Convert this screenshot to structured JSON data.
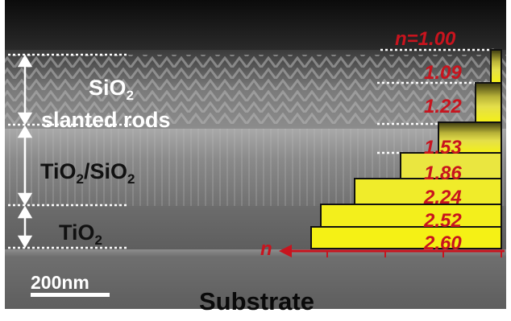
{
  "layers": {
    "sio2_main": "SiO",
    "sio2_sub": "2",
    "sio2_line2": "slanted rods",
    "mixed_ti": "TiO",
    "mixed_sub1": "2",
    "mixed_mid": "/SiO",
    "mixed_sub2": "2",
    "tio2_main": "TiO",
    "tio2_sub": "2"
  },
  "scale_bar": {
    "label": "200nm"
  },
  "substrate": {
    "label": "Substrate"
  },
  "axis": {
    "label": "n"
  },
  "refractive_index": {
    "top_label": "n=1.00",
    "values": [
      "1.09",
      "1.22",
      "1.53",
      "1.86",
      "2.24",
      "2.52",
      "2.60"
    ]
  },
  "colors": {
    "index_text": "#c8141e",
    "step_fill_high": "#f2ee1a",
    "step_fill_low": "#3c3a10"
  }
}
